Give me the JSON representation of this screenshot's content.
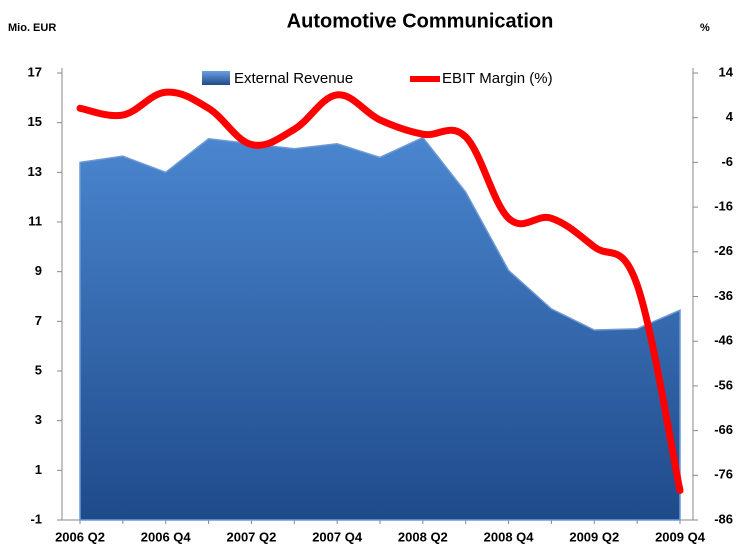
{
  "chart_data": {
    "type": "area-line",
    "title": "Automotive Communication",
    "y_label": "Mio. EUR",
    "y2_label": "%",
    "categories": [
      "2006 Q2",
      null,
      "2006 Q4",
      null,
      "2007 Q2",
      null,
      "2007 Q4",
      null,
      "2008 Q2",
      null,
      "2008 Q4",
      null,
      "2009 Q2",
      null,
      "2009 Q4"
    ],
    "series": [
      {
        "name": "External Revenue",
        "color": "#3a6fb8",
        "type": "area",
        "values": [
          13.4,
          13.65,
          13.0,
          14.35,
          14.15,
          13.95,
          14.15,
          13.6,
          14.4,
          12.2,
          9.05,
          7.5,
          6.65,
          6.7,
          7.45
        ]
      },
      {
        "name": "EBIT Margin (%)",
        "color": "#ff0000",
        "type": "line",
        "axis": "y2",
        "values": [
          6.1,
          4.6,
          9.7,
          6.1,
          -2,
          1.4,
          9.1,
          3.5,
          0.3,
          -0.3,
          -18.5,
          -18.5,
          -24.9,
          -33.4,
          -79.4
        ]
      }
    ],
    "ylim": [
      -1,
      17
    ],
    "yticks": [
      -1,
      1,
      3,
      5,
      7,
      9,
      11,
      13,
      15,
      17
    ],
    "y2lim": [
      -86,
      14
    ],
    "y2ticks": [
      -86,
      -76,
      -66,
      -56,
      -46,
      -36,
      -26,
      -16,
      -6,
      4,
      14
    ],
    "legend": "top"
  }
}
